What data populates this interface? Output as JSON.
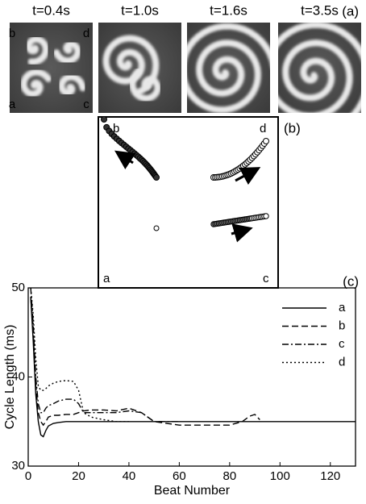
{
  "panel_a": {
    "label": "(a)",
    "times": [
      "t=0.4s",
      "t=1.0s",
      "t=1.6s",
      "t=3.5s"
    ],
    "corners": [
      "b",
      "d",
      "a",
      "c"
    ]
  },
  "panel_b": {
    "label": "(b)",
    "corners": [
      "b",
      "d",
      "a",
      "c"
    ]
  },
  "chart_data": {
    "type": "line",
    "label": "(c)",
    "x_label": "Beat Number",
    "y_label": "Cycle Length (ms)",
    "x": [
      1,
      2,
      3,
      4,
      5,
      6,
      7,
      8,
      10,
      12,
      15,
      18,
      20,
      22,
      25,
      30,
      35,
      40,
      45,
      50,
      60,
      70,
      80,
      85,
      88,
      90,
      92,
      100,
      110,
      120,
      130
    ],
    "series": [
      {
        "name": "a",
        "color": "#000000",
        "dash": "solid",
        "values": [
          49,
          44,
          38,
          35,
          33.5,
          33.3,
          34,
          34.5,
          34.8,
          34.9,
          35,
          35,
          35,
          35,
          35,
          35,
          35,
          35,
          35,
          35,
          35,
          35,
          35,
          35,
          35,
          35,
          35,
          35,
          35,
          35,
          35
        ]
      },
      {
        "name": "b",
        "color": "#000000",
        "dash": "dashed",
        "values": [
          49,
          45,
          39,
          36,
          35,
          34.6,
          35,
          35.5,
          35.7,
          35.7,
          35.8,
          35.8,
          36,
          36.2,
          36.3,
          36.3,
          36.2,
          36.5,
          36,
          35,
          34.6,
          34.6,
          34.6,
          35,
          35.6,
          35.8,
          35.2,
          null,
          null,
          null,
          null
        ]
      },
      {
        "name": "c",
        "color": "#000000",
        "dash": "dashdot",
        "values": [
          50,
          46,
          40,
          37,
          36,
          36,
          36.5,
          36.8,
          37,
          37.3,
          37.5,
          37.5,
          37,
          36,
          36,
          36,
          36,
          36.2,
          36,
          35,
          35,
          null,
          null,
          null,
          null,
          null,
          null,
          null,
          null,
          null,
          null
        ]
      },
      {
        "name": "d",
        "color": "#000000",
        "dash": "dotted",
        "values": [
          50,
          47,
          42,
          39,
          38.5,
          38.5,
          38.7,
          39,
          39.3,
          39.5,
          39.6,
          39.5,
          38.5,
          36,
          35.5,
          35.2,
          35,
          35,
          null,
          null,
          null,
          null,
          null,
          null,
          null,
          null,
          null,
          null,
          null,
          null,
          null
        ]
      }
    ],
    "xlim": [
      0,
      130
    ],
    "ylim": [
      30,
      50
    ],
    "xticks": [
      0,
      20,
      40,
      60,
      80,
      100,
      120
    ],
    "yticks": [
      30,
      40,
      50
    ],
    "legend": "upper right"
  }
}
